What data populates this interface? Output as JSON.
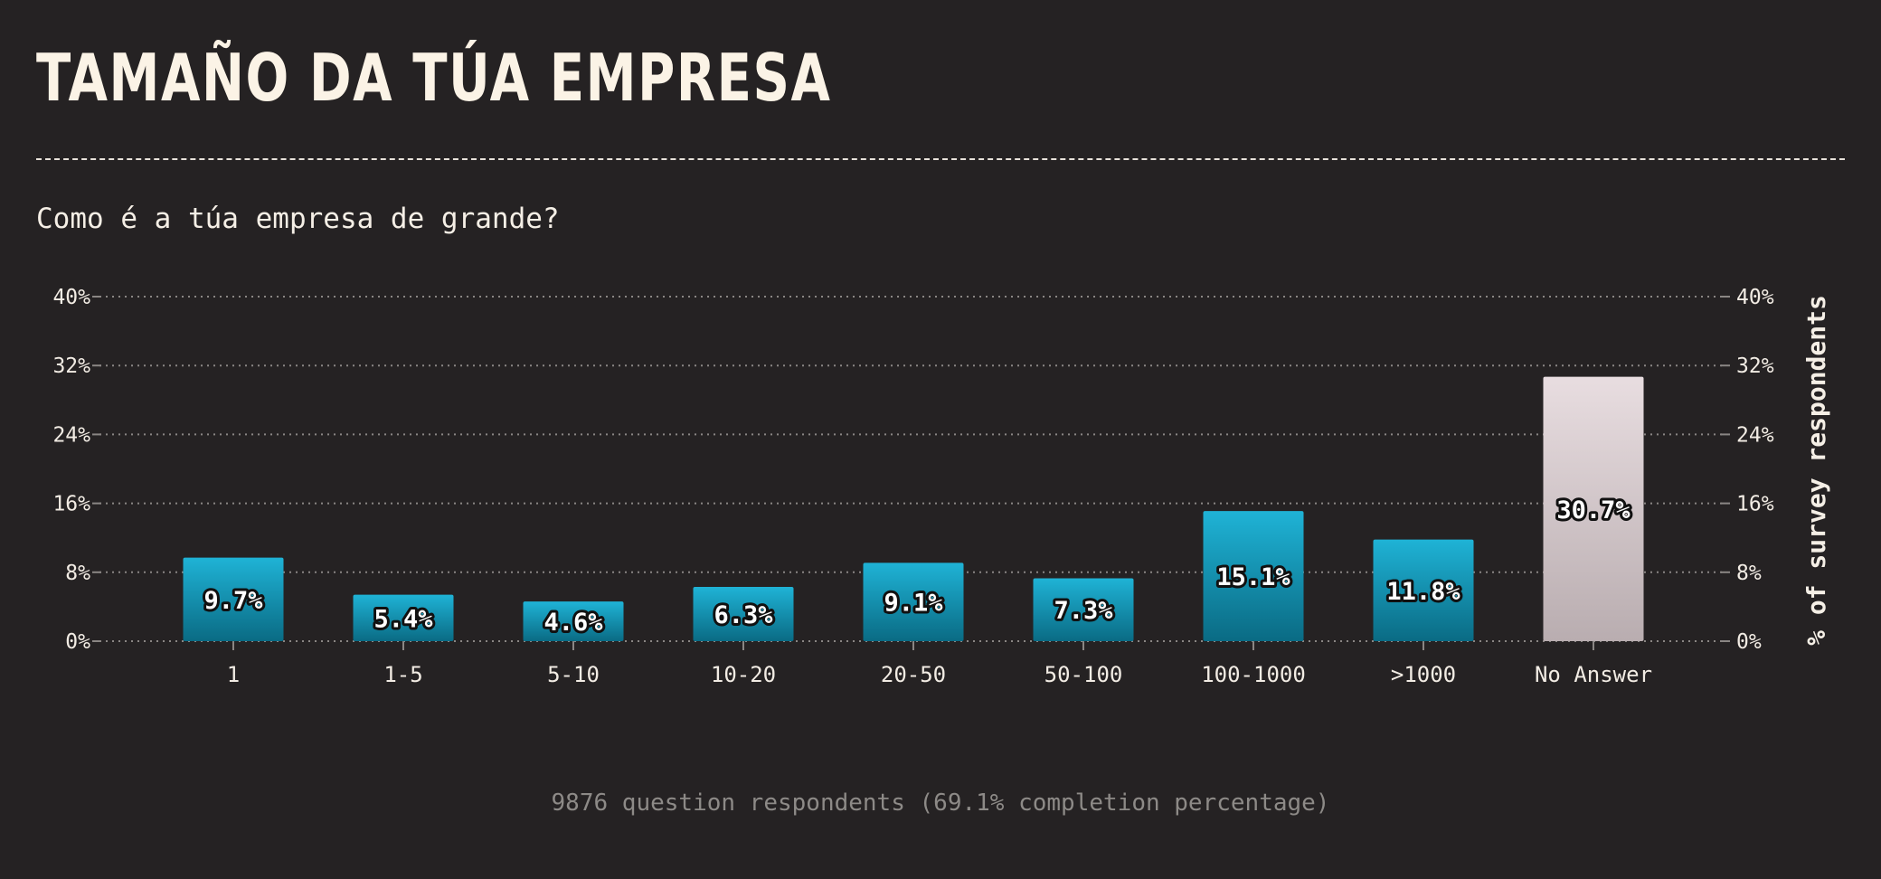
{
  "header": {
    "title": "TAMAÑO DA TÚA EMPRESA",
    "question": "Como é a túa empresa de grande?"
  },
  "footer": {
    "text": "9876 question respondents (69.1% completion percentage)"
  },
  "colors": {
    "background": "#252223",
    "bar_top": "#1fb3d6",
    "bar_bottom": "#0a6b84",
    "no_answer_top": "#e8dde0",
    "no_answer_bottom": "#b9adb0",
    "text": "#fbf3e6",
    "grid": "#8a8684"
  },
  "chart_data": {
    "type": "bar",
    "categories": [
      "1",
      "1-5",
      "5-10",
      "10-20",
      "20-50",
      "50-100",
      "100-1000",
      ">1000",
      "No Answer"
    ],
    "values": [
      9.7,
      5.4,
      4.6,
      6.3,
      9.1,
      7.3,
      15.1,
      11.8,
      30.7
    ],
    "value_labels": [
      "9.7%",
      "5.4%",
      "4.6%",
      "6.3%",
      "9.1%",
      "7.3%",
      "15.1%",
      "11.8%",
      "30.7%"
    ],
    "ylabel": "% of survey respondents",
    "ylim": [
      0,
      40
    ],
    "yticks": [
      0,
      8,
      16,
      24,
      32,
      40
    ],
    "ytick_labels": [
      "0%",
      "8%",
      "16%",
      "24%",
      "32%",
      "40%"
    ],
    "grid": true,
    "axis_sides": "left-and-right"
  }
}
